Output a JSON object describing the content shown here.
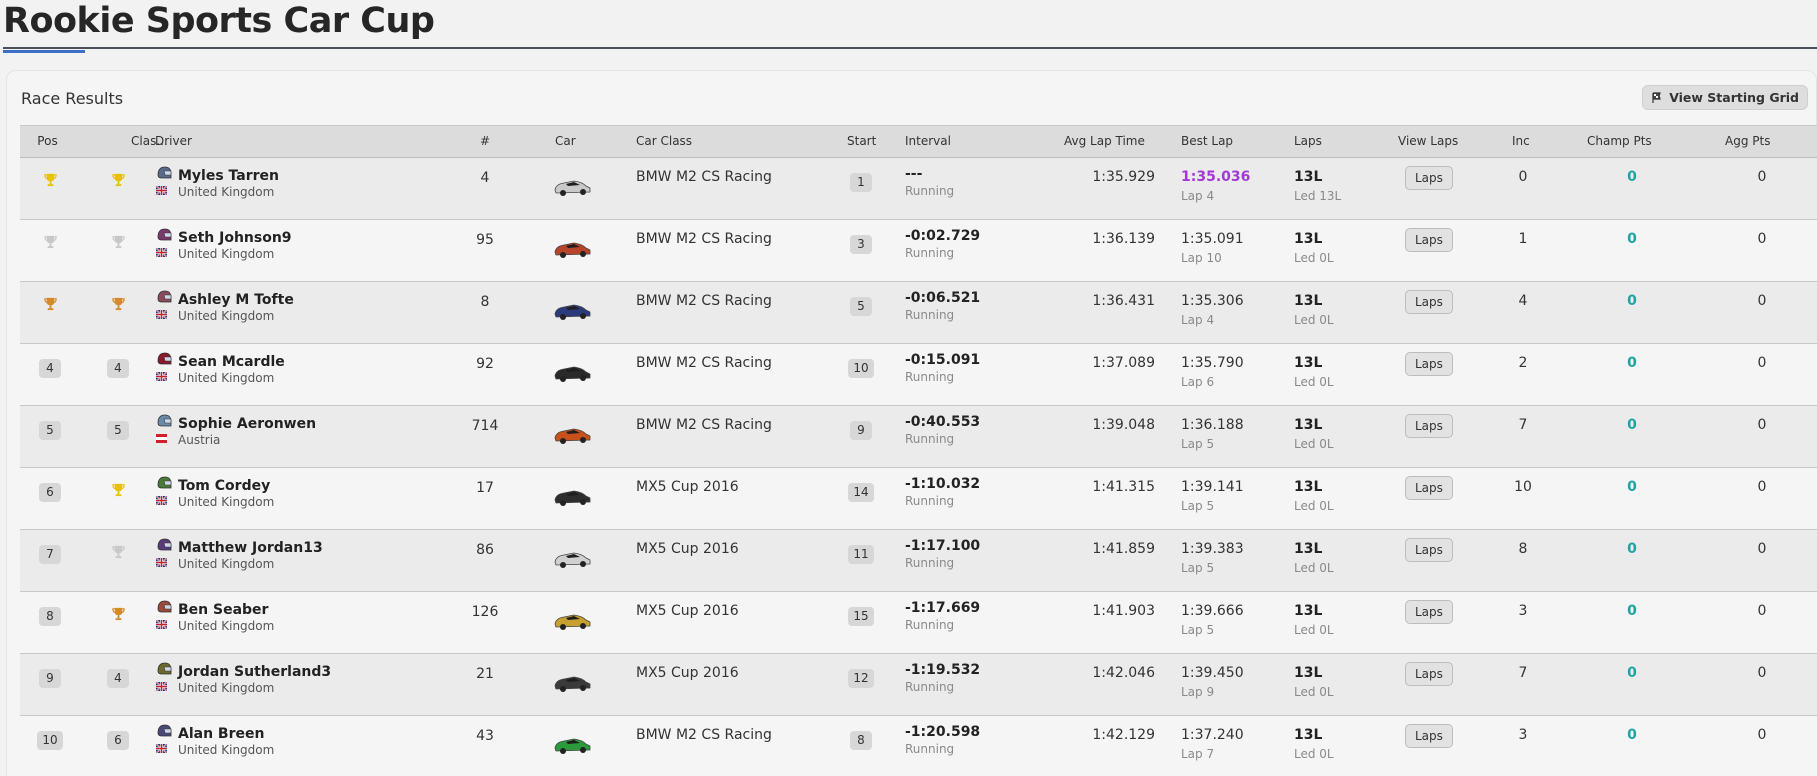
{
  "page": {
    "title": "Rookie Sports Car Cup"
  },
  "panel": {
    "title": "Race Results",
    "view_grid_label": "View Starting Grid"
  },
  "columns": {
    "pos": "Pos",
    "class_pos": "Clas...",
    "driver": "Driver",
    "number": "#",
    "car": "Car",
    "car_class": "Car Class",
    "start": "Start",
    "interval": "Interval",
    "avg_lap": "Avg Lap Time",
    "best_lap": "Best Lap",
    "laps": "Laps",
    "view_laps": "View Laps",
    "inc": "Inc",
    "champ_pts": "Champ Pts",
    "agg_pts": "Agg Pts"
  },
  "colors": {
    "gold": "#e8c200",
    "silver": "#c8c8c8",
    "bronze": "#d4892a",
    "accent": "#3d6ec9",
    "champ_pts": "#1fa3a3",
    "fastest_lap": "#a239d6"
  },
  "rows": [
    {
      "pos": "1",
      "pos_trophy": "gold",
      "class_pos": "1",
      "class_trophy": "gold",
      "driver": "Myles Tarren",
      "country": "United Kingdom",
      "flag": "uk",
      "helmet": "#5a6a8a",
      "number": "4",
      "car_color": "#c9c9c9",
      "car_class": "BMW M2 CS Racing",
      "start": "1",
      "interval": "---",
      "status": "Running",
      "avg_lap": "1:35.929",
      "best_lap": "1:35.036",
      "best_lap_num": "Lap 4",
      "fastest": true,
      "laps": "13L",
      "led": "Led 13L",
      "view_laps": "Laps",
      "inc": "0",
      "champ_pts": "0",
      "agg_pts": "0"
    },
    {
      "pos": "2",
      "pos_trophy": "silver",
      "class_pos": "2",
      "class_trophy": "silver",
      "driver": "Seth Johnson9",
      "country": "United Kingdom",
      "flag": "uk",
      "helmet": "#7a3a6a",
      "number": "95",
      "car_color": "#b8452a",
      "car_class": "BMW M2 CS Racing",
      "start": "3",
      "interval": "-0:02.729",
      "status": "Running",
      "avg_lap": "1:36.139",
      "best_lap": "1:35.091",
      "best_lap_num": "Lap 10",
      "fastest": false,
      "laps": "13L",
      "led": "Led 0L",
      "view_laps": "Laps",
      "inc": "1",
      "champ_pts": "0",
      "agg_pts": "0"
    },
    {
      "pos": "3",
      "pos_trophy": "bronze",
      "class_pos": "3",
      "class_trophy": "bronze",
      "driver": "Ashley M Tofte",
      "country": "United Kingdom",
      "flag": "uk",
      "helmet": "#8a4a5a",
      "number": "8",
      "car_color": "#2a3a7a",
      "car_class": "BMW M2 CS Racing",
      "start": "5",
      "interval": "-0:06.521",
      "status": "Running",
      "avg_lap": "1:36.431",
      "best_lap": "1:35.306",
      "best_lap_num": "Lap 4",
      "fastest": false,
      "laps": "13L",
      "led": "Led 0L",
      "view_laps": "Laps",
      "inc": "4",
      "champ_pts": "0",
      "agg_pts": "0"
    },
    {
      "pos": "4",
      "pos_trophy": "",
      "class_pos": "4",
      "class_trophy": "",
      "driver": "Sean Mcardle",
      "country": "United Kingdom",
      "flag": "uk",
      "helmet": "#8a1a2a",
      "number": "92",
      "car_color": "#2a2a2a",
      "car_class": "BMW M2 CS Racing",
      "start": "10",
      "interval": "-0:15.091",
      "status": "Running",
      "avg_lap": "1:37.089",
      "best_lap": "1:35.790",
      "best_lap_num": "Lap 6",
      "fastest": false,
      "laps": "13L",
      "led": "Led 0L",
      "view_laps": "Laps",
      "inc": "2",
      "champ_pts": "0",
      "agg_pts": "0"
    },
    {
      "pos": "5",
      "pos_trophy": "",
      "class_pos": "5",
      "class_trophy": "",
      "driver": "Sophie Aeronwen",
      "country": "Austria",
      "flag": "at",
      "helmet": "#6a8aaa",
      "number": "714",
      "car_color": "#c8501a",
      "car_class": "BMW M2 CS Racing",
      "start": "9",
      "interval": "-0:40.553",
      "status": "Running",
      "avg_lap": "1:39.048",
      "best_lap": "1:36.188",
      "best_lap_num": "Lap 5",
      "fastest": false,
      "laps": "13L",
      "led": "Led 0L",
      "view_laps": "Laps",
      "inc": "7",
      "champ_pts": "0",
      "agg_pts": "0"
    },
    {
      "pos": "6",
      "pos_trophy": "",
      "class_pos": "1",
      "class_trophy": "gold",
      "driver": "Tom Cordey",
      "country": "United Kingdom",
      "flag": "uk",
      "helmet": "#4a7a3a",
      "number": "17",
      "car_color": "#2e2e2e",
      "car_class": "MX5 Cup 2016",
      "start": "14",
      "interval": "-1:10.032",
      "status": "Running",
      "avg_lap": "1:41.315",
      "best_lap": "1:39.141",
      "best_lap_num": "Lap 5",
      "fastest": false,
      "laps": "13L",
      "led": "Led 0L",
      "view_laps": "Laps",
      "inc": "10",
      "champ_pts": "0",
      "agg_pts": "0"
    },
    {
      "pos": "7",
      "pos_trophy": "",
      "class_pos": "2",
      "class_trophy": "silver",
      "driver": "Matthew Jordan13",
      "country": "United Kingdom",
      "flag": "uk",
      "helmet": "#5a3a7a",
      "number": "86",
      "car_color": "#d0d0d0",
      "car_class": "MX5 Cup 2016",
      "start": "11",
      "interval": "-1:17.100",
      "status": "Running",
      "avg_lap": "1:41.859",
      "best_lap": "1:39.383",
      "best_lap_num": "Lap 5",
      "fastest": false,
      "laps": "13L",
      "led": "Led 0L",
      "view_laps": "Laps",
      "inc": "8",
      "champ_pts": "0",
      "agg_pts": "0"
    },
    {
      "pos": "8",
      "pos_trophy": "",
      "class_pos": "3",
      "class_trophy": "bronze",
      "driver": "Ben Seaber",
      "country": "United Kingdom",
      "flag": "uk",
      "helmet": "#9a4a3a",
      "number": "126",
      "car_color": "#c8a030",
      "car_class": "MX5 Cup 2016",
      "start": "15",
      "interval": "-1:17.669",
      "status": "Running",
      "avg_lap": "1:41.903",
      "best_lap": "1:39.666",
      "best_lap_num": "Lap 5",
      "fastest": false,
      "laps": "13L",
      "led": "Led 0L",
      "view_laps": "Laps",
      "inc": "3",
      "champ_pts": "0",
      "agg_pts": "0"
    },
    {
      "pos": "9",
      "pos_trophy": "",
      "class_pos": "4",
      "class_trophy": "",
      "driver": "Jordan Sutherland3",
      "country": "United Kingdom",
      "flag": "uk",
      "helmet": "#6a6a2a",
      "number": "21",
      "car_color": "#3a3a3a",
      "car_class": "MX5 Cup 2016",
      "start": "12",
      "interval": "-1:19.532",
      "status": "Running",
      "avg_lap": "1:42.046",
      "best_lap": "1:39.450",
      "best_lap_num": "Lap 9",
      "fastest": false,
      "laps": "13L",
      "led": "Led 0L",
      "view_laps": "Laps",
      "inc": "7",
      "champ_pts": "0",
      "agg_pts": "0"
    },
    {
      "pos": "10",
      "pos_trophy": "",
      "class_pos": "6",
      "class_trophy": "",
      "driver": "Alan Breen",
      "country": "United Kingdom",
      "flag": "uk",
      "helmet": "#4a4a7a",
      "number": "43",
      "car_color": "#2a9a3a",
      "car_class": "BMW M2 CS Racing",
      "start": "8",
      "interval": "-1:20.598",
      "status": "Running",
      "avg_lap": "1:42.129",
      "best_lap": "1:37.240",
      "best_lap_num": "Lap 7",
      "fastest": false,
      "laps": "13L",
      "led": "Led 0L",
      "view_laps": "Laps",
      "inc": "3",
      "champ_pts": "0",
      "agg_pts": "0"
    }
  ]
}
